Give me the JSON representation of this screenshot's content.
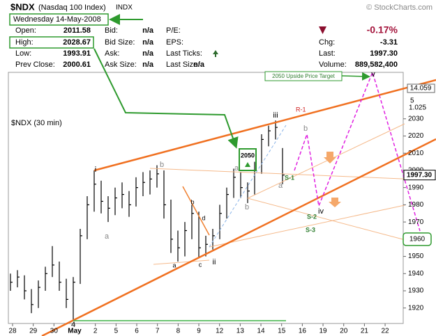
{
  "header": {
    "symbol": "$NDX",
    "name": "(Nasdaq 100 Index)",
    "exchange": "INDX",
    "source": "© StockCharts.com",
    "date": "Wednesday  14-May-2008",
    "quote": {
      "open": [
        "Open:",
        "2011.58"
      ],
      "high": [
        "High:",
        "2028.67"
      ],
      "low": [
        "Low:",
        "1993.91"
      ],
      "prev_close": [
        "Prev Close:",
        "2000.61"
      ],
      "bid": [
        "Bid:",
        "n/a"
      ],
      "bid_size": [
        "Bid Size:",
        "n/a"
      ],
      "ask": [
        "Ask:",
        "n/a"
      ],
      "ask_size": [
        "Ask Size:",
        "n/a"
      ],
      "pe": "P/E:",
      "eps": "EPS:",
      "last_ticks": "Last Ticks:",
      "last_size": [
        "Last Size:",
        "n/a"
      ],
      "change_pct": "-0.17%",
      "chg": [
        "Chg:",
        "-3.31"
      ],
      "last": [
        "Last:",
        "1997.30"
      ],
      "volume": [
        "Volume:",
        "889,582,400"
      ]
    }
  },
  "chart_data": {
    "type": "ohlc",
    "title": "$NDX (30 min)",
    "color": "#000000",
    "categories": [
      "28",
      "29",
      "30",
      "May",
      "2",
      "5",
      "6",
      "7",
      "8",
      "9",
      "12",
      "13",
      "14",
      "15",
      "16",
      "19",
      "20",
      "21",
      "22"
    ],
    "high": [
      1940,
      1942,
      1939,
      1931,
      1936,
      1944,
      1956,
      1947,
      1937,
      1938,
      1966,
      1985,
      2000,
      1994,
      1985,
      1990,
      1993,
      1988,
      1996,
      1999,
      2000,
      2003,
      2000,
      1983,
      1965,
      1970,
      1980,
      1976,
      1962,
      1966,
      1980,
      1990,
      2001,
      1999,
      1993,
      2005,
      2021,
      2026,
      2029,
      2013
    ],
    "low": [
      1930,
      1932,
      1925,
      1917,
      1920,
      1930,
      1938,
      1930,
      1920,
      1913,
      1934,
      1960,
      1976,
      1975,
      1970,
      1974,
      1978,
      1973,
      1979,
      1985,
      1986,
      1990,
      1972,
      1952,
      1947,
      1950,
      1960,
      1949,
      1950,
      1954,
      1960,
      1972,
      1984,
      1984,
      1981,
      1986,
      1998,
      2014,
      2018,
      1992
    ],
    "close": [
      1935,
      1938,
      1930,
      1922,
      1932,
      1940,
      1945,
      1935,
      1925,
      1935,
      1962,
      1980,
      1992,
      1982,
      1978,
      1984,
      1986,
      1980,
      1990,
      1993,
      1995,
      1998,
      1980,
      1960,
      1955,
      1965,
      1975,
      1955,
      1957,
      1962,
      1975,
      1986,
      1996,
      1990,
      1988,
      2000,
      2018,
      2023,
      2025,
      1997.3
    ],
    "ylim": [
      1911,
      2057
    ],
    "yticks": [
      1920,
      1930,
      1940,
      1950,
      1960,
      1970,
      1980,
      1990,
      2000,
      2010,
      2020,
      2030
    ],
    "last_price": {
      "value": 1997.3,
      "label": "1997.30"
    },
    "target_box": 1960,
    "annotations": [
      "2050 Upside Price Target",
      "2050",
      "R-1",
      "S-1",
      "S-2",
      "S-3",
      "i",
      "ii",
      "iii",
      "iv",
      "v",
      "a",
      "b",
      "a",
      "b",
      "c",
      "d",
      "a",
      "b",
      "a",
      "b",
      "4",
      "14.059",
      "5",
      "1.025"
    ]
  }
}
